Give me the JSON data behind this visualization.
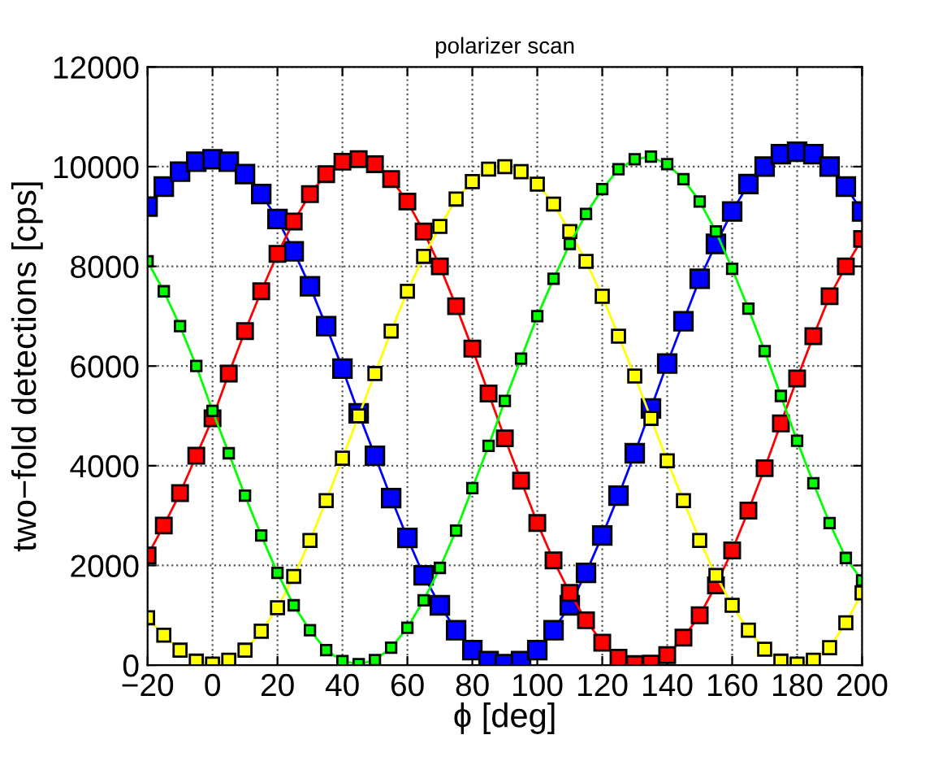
{
  "chart_data": {
    "type": "line",
    "title": "polarizer scan",
    "xlabel": "ϕ [deg]",
    "ylabel": "two−fold detections [cps]",
    "x": [
      -20,
      -15,
      -10,
      -5,
      0,
      5,
      10,
      15,
      20,
      25,
      30,
      35,
      40,
      45,
      50,
      55,
      60,
      65,
      70,
      75,
      80,
      85,
      90,
      95,
      100,
      105,
      110,
      115,
      120,
      125,
      130,
      135,
      140,
      145,
      150,
      155,
      160,
      165,
      170,
      175,
      180,
      185,
      190,
      195,
      200
    ],
    "series": [
      {
        "color": "#0000ff",
        "values": [
          9200,
          9600,
          9900,
          10100,
          10150,
          10100,
          9850,
          9450,
          8950,
          8300,
          7600,
          6800,
          5950,
          5050,
          4200,
          3350,
          2550,
          1800,
          1200,
          700,
          300,
          80,
          20,
          80,
          300,
          700,
          1200,
          1850,
          2600,
          3400,
          4250,
          5150,
          6050,
          6900,
          7750,
          8450,
          9100,
          9650,
          10000,
          10250,
          10300,
          10250,
          10000,
          9600,
          9100
        ]
      },
      {
        "color": "#ff0000",
        "values": [
          2200,
          2800,
          3450,
          4200,
          4950,
          5850,
          6700,
          7500,
          8250,
          8900,
          9450,
          9850,
          10100,
          10150,
          10050,
          9750,
          9300,
          8700,
          8000,
          7200,
          6350,
          5450,
          4550,
          3700,
          2850,
          2100,
          1450,
          900,
          450,
          150,
          20,
          30,
          200,
          550,
          1000,
          1600,
          2300,
          3100,
          3950,
          4850,
          5750,
          6600,
          7400,
          8000,
          8550
        ]
      },
      {
        "color": "#ffff00",
        "values": [
          950,
          600,
          300,
          80,
          20,
          100,
          300,
          680,
          1150,
          1780,
          2500,
          3300,
          4150,
          5000,
          5850,
          6700,
          7500,
          8200,
          8800,
          9350,
          9700,
          9950,
          10000,
          9900,
          9650,
          9250,
          8700,
          8100,
          7400,
          6600,
          5800,
          4950,
          4100,
          3300,
          2500,
          1800,
          1200,
          700,
          320,
          80,
          20,
          100,
          350,
          850,
          1450
        ]
      },
      {
        "color": "#00ff00",
        "values": [
          8100,
          7500,
          6800,
          6000,
          5100,
          4250,
          3400,
          2600,
          1850,
          1200,
          700,
          300,
          80,
          20,
          100,
          350,
          750,
          1300,
          1950,
          2700,
          3550,
          4400,
          5300,
          6150,
          7000,
          7750,
          8450,
          9050,
          9550,
          9950,
          10150,
          10200,
          10050,
          9750,
          9300,
          8700,
          7950,
          7150,
          6300,
          5400,
          4500,
          3650,
          2850,
          2150,
          1700
        ]
      }
    ],
    "xlim": [
      -20,
      200
    ],
    "xticks": [
      -20,
      0,
      20,
      40,
      60,
      80,
      100,
      120,
      140,
      160,
      180,
      200
    ],
    "ylim": [
      0,
      12000
    ],
    "yticks": [
      0,
      2000,
      4000,
      6000,
      8000,
      10000,
      12000
    ],
    "grid": true,
    "marker": "square",
    "line_style": "solid"
  }
}
